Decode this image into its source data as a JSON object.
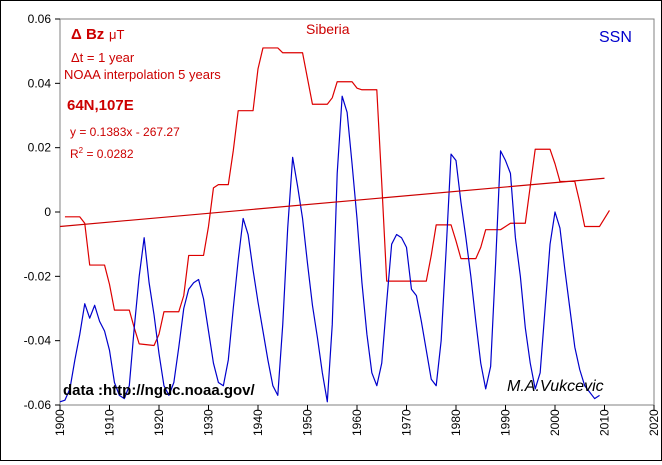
{
  "chart_data": {
    "type": "line",
    "title": "Siberia",
    "xlim": [
      1900,
      2020
    ],
    "ylim": [
      -0.06,
      0.06
    ],
    "x_ticks": [
      "1900",
      "1910",
      "1920",
      "1930",
      "1940",
      "1950",
      "1960",
      "1970",
      "1980",
      "1990",
      "2000",
      "2010",
      "2020"
    ],
    "y_ticks": [
      "0.06",
      "0.04",
      "0.02",
      "0",
      "-0.02",
      "-0.04",
      "-0.06"
    ],
    "grid": false,
    "legend": {
      "ssn": "SSN"
    },
    "annotations": {
      "delta_bz_main": "Δ Bz",
      "delta_bz_unit": "μT",
      "delta_t": "Δt = 1 year",
      "interpolation": "NOAA interpolation 5 years",
      "location": "64N,107E",
      "equation": "y = 0.1383x - 267.27",
      "r2_label": "R",
      "r2_exp": "2",
      "r2_value": " = 0.0282",
      "data_source": "data  :http://ngdc.noaa.gov/",
      "signature": "M.A.Vukcevic"
    },
    "colors": {
      "delta_bz": "#dd0000",
      "ssn": "#0000cc",
      "trend": "#cc0000"
    },
    "series": [
      {
        "name": "Δ Bz",
        "points": [
          [
            1901,
            -0.0015
          ],
          [
            1904,
            -0.0015
          ],
          [
            1905,
            -0.0035
          ],
          [
            1906,
            -0.0165
          ],
          [
            1909,
            -0.0165
          ],
          [
            1910,
            -0.0225
          ],
          [
            1911,
            -0.0305
          ],
          [
            1914,
            -0.0305
          ],
          [
            1915,
            -0.036
          ],
          [
            1916,
            -0.041
          ],
          [
            1919,
            -0.0415
          ],
          [
            1920,
            -0.038
          ],
          [
            1921,
            -0.031
          ],
          [
            1924,
            -0.031
          ],
          [
            1925,
            -0.026
          ],
          [
            1926,
            -0.0135
          ],
          [
            1929,
            -0.0135
          ],
          [
            1930,
            -0.0045
          ],
          [
            1931,
            0.0075
          ],
          [
            1932,
            0.0085
          ],
          [
            1934,
            0.0085
          ],
          [
            1935,
            0.019
          ],
          [
            1936,
            0.0315
          ],
          [
            1939,
            0.0315
          ],
          [
            1940,
            0.0445
          ],
          [
            1941,
            0.051
          ],
          [
            1944,
            0.051
          ],
          [
            1945,
            0.0495
          ],
          [
            1949,
            0.0495
          ],
          [
            1950,
            0.0415
          ],
          [
            1951,
            0.0335
          ],
          [
            1954,
            0.0335
          ],
          [
            1955,
            0.0355
          ],
          [
            1956,
            0.0405
          ],
          [
            1959,
            0.0405
          ],
          [
            1960,
            0.0385
          ],
          [
            1961,
            0.038
          ],
          [
            1964,
            0.038
          ],
          [
            1965,
            0.009
          ],
          [
            1966,
            -0.0215
          ],
          [
            1969,
            -0.0215
          ],
          [
            1970,
            -0.0215
          ],
          [
            1974,
            -0.0215
          ],
          [
            1975,
            -0.0135
          ],
          [
            1976,
            -0.004
          ],
          [
            1979,
            -0.004
          ],
          [
            1980,
            -0.009
          ],
          [
            1981,
            -0.0145
          ],
          [
            1984,
            -0.0145
          ],
          [
            1985,
            -0.011
          ],
          [
            1986,
            -0.0055
          ],
          [
            1989,
            -0.0055
          ],
          [
            1990,
            -0.0045
          ],
          [
            1991,
            -0.0035
          ],
          [
            1994,
            -0.0035
          ],
          [
            1995,
            0.008
          ],
          [
            1996,
            0.0195
          ],
          [
            1999,
            0.0195
          ],
          [
            2000,
            0.015
          ],
          [
            2001,
            0.0095
          ],
          [
            2003,
            0.0095
          ],
          [
            2004,
            0.0095
          ],
          [
            2005,
            0.003
          ],
          [
            2006,
            -0.0045
          ],
          [
            2009,
            -0.0045
          ],
          [
            2010,
            -0.002
          ],
          [
            2011,
            0.0005
          ]
        ]
      },
      {
        "name": "SSN",
        "points": [
          [
            1900,
            -0.059
          ],
          [
            1901,
            -0.0585
          ],
          [
            1902,
            -0.055
          ],
          [
            1903,
            -0.046
          ],
          [
            1904,
            -0.038
          ],
          [
            1905,
            -0.0285
          ],
          [
            1906,
            -0.033
          ],
          [
            1907,
            -0.029
          ],
          [
            1908,
            -0.034
          ],
          [
            1909,
            -0.037
          ],
          [
            1910,
            -0.043
          ],
          [
            1911,
            -0.053
          ],
          [
            1912,
            -0.057
          ],
          [
            1913,
            -0.058
          ],
          [
            1914,
            -0.054
          ],
          [
            1915,
            -0.036
          ],
          [
            1916,
            -0.02
          ],
          [
            1917,
            -0.008
          ],
          [
            1918,
            -0.022
          ],
          [
            1919,
            -0.032
          ],
          [
            1920,
            -0.044
          ],
          [
            1921,
            -0.054
          ],
          [
            1922,
            -0.057
          ],
          [
            1923,
            -0.053
          ],
          [
            1924,
            -0.042
          ],
          [
            1925,
            -0.03
          ],
          [
            1926,
            -0.024
          ],
          [
            1927,
            -0.022
          ],
          [
            1928,
            -0.021
          ],
          [
            1929,
            -0.027
          ],
          [
            1930,
            -0.037
          ],
          [
            1931,
            -0.047
          ],
          [
            1932,
            -0.053
          ],
          [
            1933,
            -0.054
          ],
          [
            1934,
            -0.046
          ],
          [
            1935,
            -0.03
          ],
          [
            1936,
            -0.015
          ],
          [
            1937,
            -0.002
          ],
          [
            1938,
            -0.007
          ],
          [
            1939,
            -0.018
          ],
          [
            1940,
            -0.028
          ],
          [
            1941,
            -0.037
          ],
          [
            1942,
            -0.046
          ],
          [
            1943,
            -0.054
          ],
          [
            1944,
            -0.057
          ],
          [
            1945,
            -0.035
          ],
          [
            1946,
            -0.005
          ],
          [
            1947,
            0.017
          ],
          [
            1948,
            0.008
          ],
          [
            1949,
            -0.002
          ],
          [
            1950,
            -0.016
          ],
          [
            1951,
            -0.029
          ],
          [
            1952,
            -0.039
          ],
          [
            1953,
            -0.05
          ],
          [
            1954,
            -0.059
          ],
          [
            1955,
            -0.035
          ],
          [
            1956,
            0.012
          ],
          [
            1957,
            0.036
          ],
          [
            1958,
            0.031
          ],
          [
            1959,
            0.015
          ],
          [
            1960,
            -0.002
          ],
          [
            1961,
            -0.022
          ],
          [
            1962,
            -0.038
          ],
          [
            1963,
            -0.05
          ],
          [
            1964,
            -0.054
          ],
          [
            1965,
            -0.047
          ],
          [
            1966,
            -0.028
          ],
          [
            1967,
            -0.01
          ],
          [
            1968,
            -0.007
          ],
          [
            1969,
            -0.008
          ],
          [
            1970,
            -0.011
          ],
          [
            1971,
            -0.024
          ],
          [
            1972,
            -0.026
          ],
          [
            1973,
            -0.034
          ],
          [
            1974,
            -0.043
          ],
          [
            1975,
            -0.052
          ],
          [
            1976,
            -0.054
          ],
          [
            1977,
            -0.04
          ],
          [
            1978,
            -0.012
          ],
          [
            1979,
            0.018
          ],
          [
            1980,
            0.016
          ],
          [
            1981,
            0.003
          ],
          [
            1982,
            -0.008
          ],
          [
            1983,
            -0.02
          ],
          [
            1984,
            -0.034
          ],
          [
            1985,
            -0.047
          ],
          [
            1986,
            -0.055
          ],
          [
            1987,
            -0.048
          ],
          [
            1988,
            -0.016
          ],
          [
            1989,
            0.019
          ],
          [
            1990,
            0.016
          ],
          [
            1991,
            0.012
          ],
          [
            1992,
            -0.008
          ],
          [
            1993,
            -0.02
          ],
          [
            1994,
            -0.036
          ],
          [
            1995,
            -0.047
          ],
          [
            1996,
            -0.055
          ],
          [
            1997,
            -0.05
          ],
          [
            1998,
            -0.03
          ],
          [
            1999,
            -0.01
          ],
          [
            2000,
            0.0
          ],
          [
            2001,
            -0.005
          ],
          [
            2002,
            -0.018
          ],
          [
            2003,
            -0.03
          ],
          [
            2004,
            -0.042
          ],
          [
            2005,
            -0.049
          ],
          [
            2006,
            -0.054
          ],
          [
            2007,
            -0.056
          ],
          [
            2008,
            -0.058
          ],
          [
            2009,
            -0.057
          ]
        ]
      },
      {
        "name": "trend",
        "points": [
          [
            1900,
            -0.0045
          ],
          [
            2010,
            0.0105
          ]
        ]
      }
    ]
  }
}
